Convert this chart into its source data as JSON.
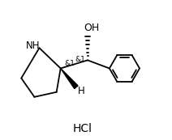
{
  "background_color": "#ffffff",
  "hcl_text": "HCl",
  "oh_text": "OH",
  "nh_text": "NH",
  "h_text": "H",
  "stereo1": "&1",
  "stereo2": "&1",
  "fig_width": 2.12,
  "fig_height": 1.73,
  "dpi": 100,
  "lw": 1.3,
  "fs_main": 8.5,
  "fs_stereo": 6.5,
  "fs_hcl": 10
}
